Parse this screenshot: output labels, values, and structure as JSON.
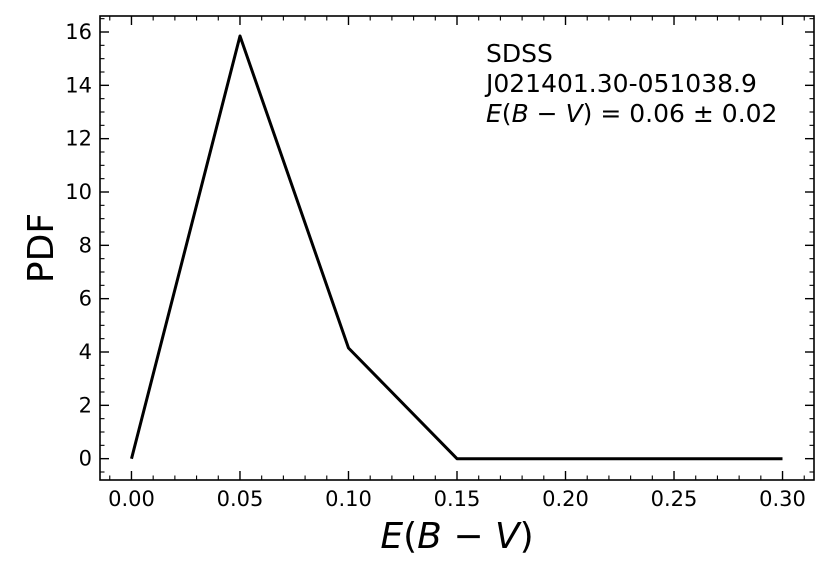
{
  "chart_data": {
    "type": "line",
    "title": "",
    "xlabel": {
      "var": "E",
      "open": "(",
      "b": "B",
      "minus": " − ",
      "v": "V",
      "close": ")"
    },
    "ylabel": "PDF",
    "xlim": [
      -0.0145,
      0.3145
    ],
    "ylim": [
      -0.8,
      16.6
    ],
    "xticks": [
      "0.00",
      "0.05",
      "0.10",
      "0.15",
      "0.20",
      "0.25",
      "0.30"
    ],
    "xtick_values": [
      0.0,
      0.05,
      0.1,
      0.15,
      0.2,
      0.25,
      0.3
    ],
    "yticks": [
      "0",
      "2",
      "4",
      "6",
      "8",
      "10",
      "12",
      "14",
      "16"
    ],
    "ytick_values": [
      0,
      2,
      4,
      6,
      8,
      10,
      12,
      14,
      16
    ],
    "minor_x_step": 0.01,
    "minor_y_step": 0.5,
    "grid": false,
    "legend": "none",
    "series": [
      {
        "color": "#000000",
        "x": [
          0.0,
          0.05,
          0.1,
          0.15,
          0.2,
          0.25,
          0.3
        ],
        "y": [
          0.0,
          15.85,
          4.15,
          0.0,
          0.0,
          0.0,
          0.0
        ]
      }
    ],
    "annotation": {
      "line1": "SDSS",
      "line2": "J021401.30-051038.9",
      "line3": {
        "e": "E",
        "open": "(",
        "b": "B",
        "minus": " − ",
        "v": "V",
        "close": ")",
        "rest": " = 0.06 ± 0.02"
      },
      "position": "top-right"
    }
  }
}
